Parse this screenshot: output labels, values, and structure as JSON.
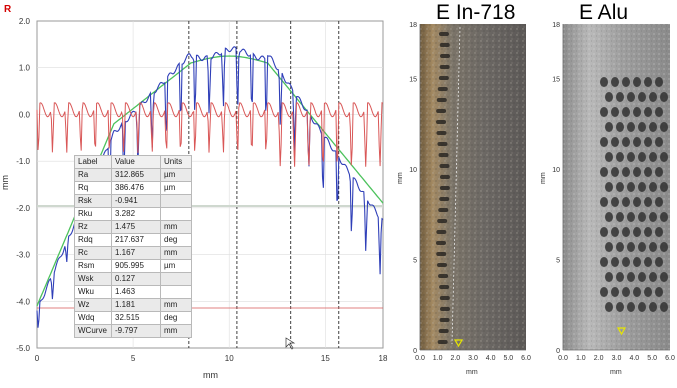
{
  "profile": {
    "r_marker": "R",
    "y_unit": "mm",
    "x_unit": "mm",
    "y_ticks": [
      "2.0",
      "1.0",
      "0.0",
      "-1.0",
      "-2.0",
      "-3.0",
      "-4.0",
      "-5.0"
    ],
    "x_ticks": [
      "0",
      "5",
      "10",
      "15",
      "18"
    ],
    "colors": {
      "primary": "#2f3fb8",
      "waviness": "#4cc25c",
      "roughness": "#d95757",
      "reference": "#c94444",
      "grid": "#dedede"
    }
  },
  "param_table": {
    "headers": [
      "Label",
      "Value",
      "Units"
    ],
    "rows": [
      [
        "Ra",
        "312.865",
        "µm"
      ],
      [
        "Rq",
        "386.476",
        "µm"
      ],
      [
        "Rsk",
        "-0.941",
        ""
      ],
      [
        "Rku",
        "3.282",
        ""
      ],
      [
        "Rz",
        "1.475",
        "mm"
      ],
      [
        "Rdq",
        "217.637",
        "deg"
      ],
      [
        "Rc",
        "1.167",
        "mm"
      ],
      [
        "Rsm",
        "905.995",
        "µm"
      ],
      [
        "Wsk",
        "0.127",
        ""
      ],
      [
        "Wku",
        "1.463",
        ""
      ],
      [
        "Wz",
        "1.181",
        "mm"
      ],
      [
        "Wdq",
        "32.515",
        "deg"
      ],
      [
        "WCurve",
        "-9.797",
        "mm"
      ]
    ]
  },
  "image_in718": {
    "title": "E In-718",
    "y_ticks": [
      "18",
      "15",
      "10",
      "5",
      "0"
    ],
    "x_ticks": [
      "0.0",
      "1.0",
      "2.0",
      "3.0",
      "4.0",
      "5.0",
      "6.0"
    ],
    "y_unit": "mm",
    "x_unit": "mm"
  },
  "image_alu": {
    "title": "E Alu",
    "y_ticks": [
      "18",
      "15",
      "10",
      "5",
      "0"
    ],
    "x_ticks": [
      "0.0",
      "1.0",
      "2.0",
      "3.0",
      "4.0",
      "5.0",
      "6.0"
    ],
    "y_unit": "mm",
    "x_unit": "mm"
  }
}
